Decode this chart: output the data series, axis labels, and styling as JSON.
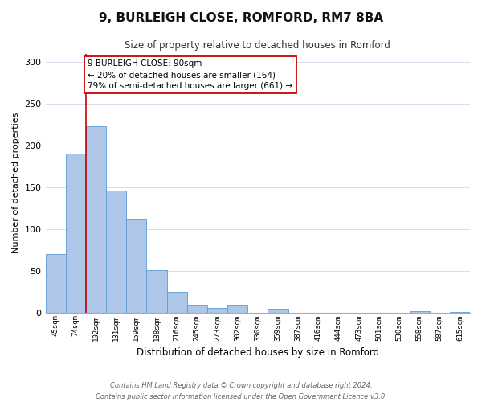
{
  "title": "9, BURLEIGH CLOSE, ROMFORD, RM7 8BA",
  "subtitle": "Size of property relative to detached houses in Romford",
  "xlabel": "Distribution of detached houses by size in Romford",
  "ylabel": "Number of detached properties",
  "bin_labels": [
    "45sqm",
    "74sqm",
    "102sqm",
    "131sqm",
    "159sqm",
    "188sqm",
    "216sqm",
    "245sqm",
    "273sqm",
    "302sqm",
    "330sqm",
    "359sqm",
    "387sqm",
    "416sqm",
    "444sqm",
    "473sqm",
    "501sqm",
    "530sqm",
    "558sqm",
    "587sqm",
    "615sqm"
  ],
  "bar_values": [
    70,
    190,
    223,
    146,
    111,
    51,
    25,
    9,
    5,
    9,
    0,
    4,
    0,
    0,
    0,
    0,
    0,
    0,
    2,
    0,
    1
  ],
  "bar_color": "#aec6e8",
  "bar_edge_color": "#5b9bd5",
  "ylim": [
    0,
    310
  ],
  "yticks": [
    0,
    50,
    100,
    150,
    200,
    250,
    300
  ],
  "property_line_x": 1.5,
  "property_line_color": "#cc0000",
  "annotation_text": "9 BURLEIGH CLOSE: 90sqm\n← 20% of detached houses are smaller (164)\n79% of semi-detached houses are larger (661) →",
  "annotation_box_color": "#ffffff",
  "annotation_box_edge": "#cc0000",
  "footer_line1": "Contains HM Land Registry data © Crown copyright and database right 2024.",
  "footer_line2": "Contains public sector information licensed under the Open Government Licence v3.0.",
  "background_color": "#ffffff",
  "grid_color": "#d4dded"
}
